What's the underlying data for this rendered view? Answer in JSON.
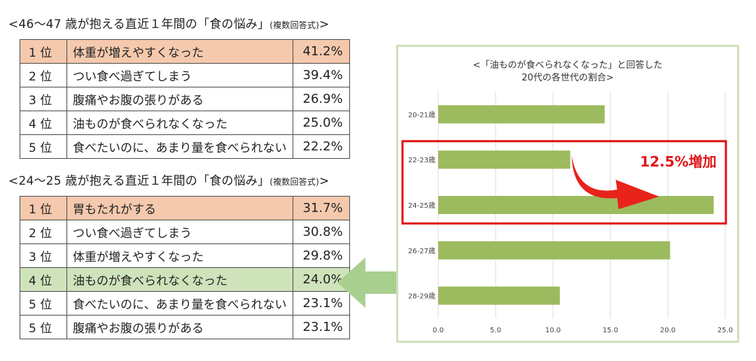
{
  "table1": {
    "title_main": "<46〜47 歳が抱える直近１年間の「食の悩み」",
    "title_note": "(複数回答式)",
    "title_end": ">",
    "rows": [
      {
        "rank": "1 位",
        "item": "体重が増えやすくなった",
        "value": "41.2%",
        "highlight": "orange"
      },
      {
        "rank": "2 位",
        "item": "つい食べ過ぎてしまう",
        "value": "39.4%",
        "highlight": ""
      },
      {
        "rank": "3 位",
        "item": "腹痛やお腹の張りがある",
        "value": "26.9%",
        "highlight": ""
      },
      {
        "rank": "4 位",
        "item": "油ものが食べられなくなった",
        "value": "25.0%",
        "highlight": ""
      },
      {
        "rank": "5 位",
        "item": "食べたいのに、あまり量を食べられない",
        "value": "22.2%",
        "highlight": ""
      }
    ]
  },
  "table2": {
    "title_main": "<24〜25 歳が抱える直近１年間の「食の悩み」",
    "title_note": "(複数回答式)",
    "title_end": ">",
    "rows": [
      {
        "rank": "1 位",
        "item": "胃もたれがする",
        "value": "31.7%",
        "highlight": "orange"
      },
      {
        "rank": "2 位",
        "item": "つい食べ過ぎてしまう",
        "value": "30.8%",
        "highlight": ""
      },
      {
        "rank": "3 位",
        "item": "体重が増えやすくなった",
        "value": "29.8%",
        "highlight": ""
      },
      {
        "rank": "4 位",
        "item": "油ものが食べられなくなった",
        "value": "24.0%",
        "highlight": "green"
      },
      {
        "rank": "5 位",
        "item": "食べたいのに、あまり量を食べられない",
        "value": "23.1%",
        "highlight": ""
      },
      {
        "rank": "5 位",
        "item": "腹痛やお腹の張りがある",
        "value": "23.1%",
        "highlight": ""
      }
    ]
  },
  "chart_data": {
    "type": "bar",
    "orientation": "horizontal",
    "title_line1": "<「油ものが食べられなくなった」と回答した",
    "title_line2": "20代の各世代の割合>",
    "categories": [
      "20-21歳",
      "22-23歳",
      "24-25歳",
      "26-27歳",
      "28-29歳"
    ],
    "values": [
      14.5,
      11.5,
      24.0,
      20.2,
      10.6
    ],
    "xlim": [
      0,
      25
    ],
    "xticks": [
      "0.0",
      "5.0",
      "10.0",
      "15.0",
      "20.0",
      "25.0"
    ],
    "grid": true,
    "annotation": "12.5%増加",
    "highlight_categories": [
      "22-23歳",
      "24-25歳"
    ],
    "colors": {
      "bar": "#9cbb5e",
      "grid": "#dcdcdc",
      "highlight_box": "#e01010",
      "arrow": "#e8231b",
      "frame": "#cfe0bf",
      "pointer_arrow": "#a9cf8f"
    }
  }
}
